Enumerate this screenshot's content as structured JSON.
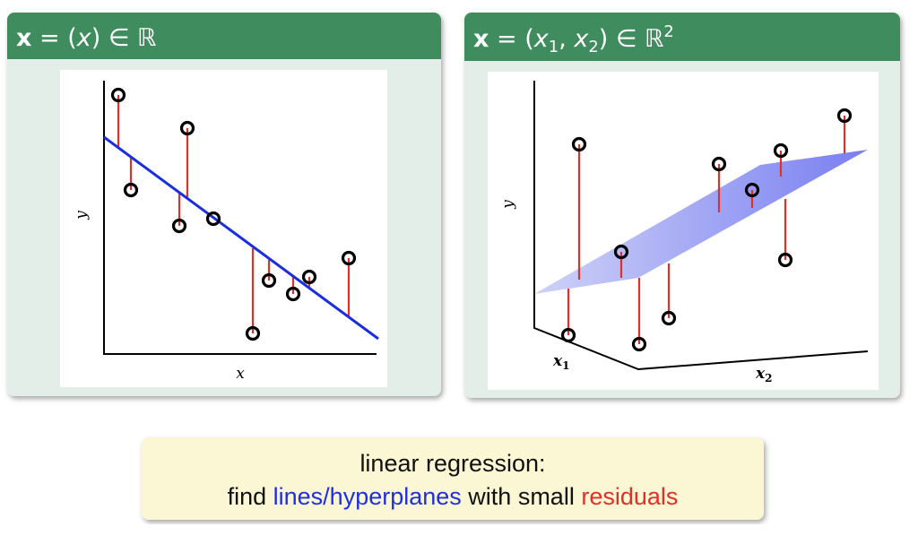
{
  "left_panel": {
    "title": [
      "x",
      " = (",
      "x",
      ") ∈ ℝ"
    ],
    "y_label": "y",
    "x_label": "x"
  },
  "right_panel": {
    "title": [
      "x",
      " = (",
      "x",
      "1",
      ", ",
      "x",
      "2",
      ") ∈ ℝ",
      "2"
    ],
    "y_label": "y",
    "x1_label": [
      "x",
      "1"
    ],
    "x2_label": [
      "x",
      "2"
    ]
  },
  "caption": {
    "line1": "linear regression:",
    "line2": [
      "find",
      "lines/hyperplanes",
      "with small",
      "residuals"
    ]
  }
}
